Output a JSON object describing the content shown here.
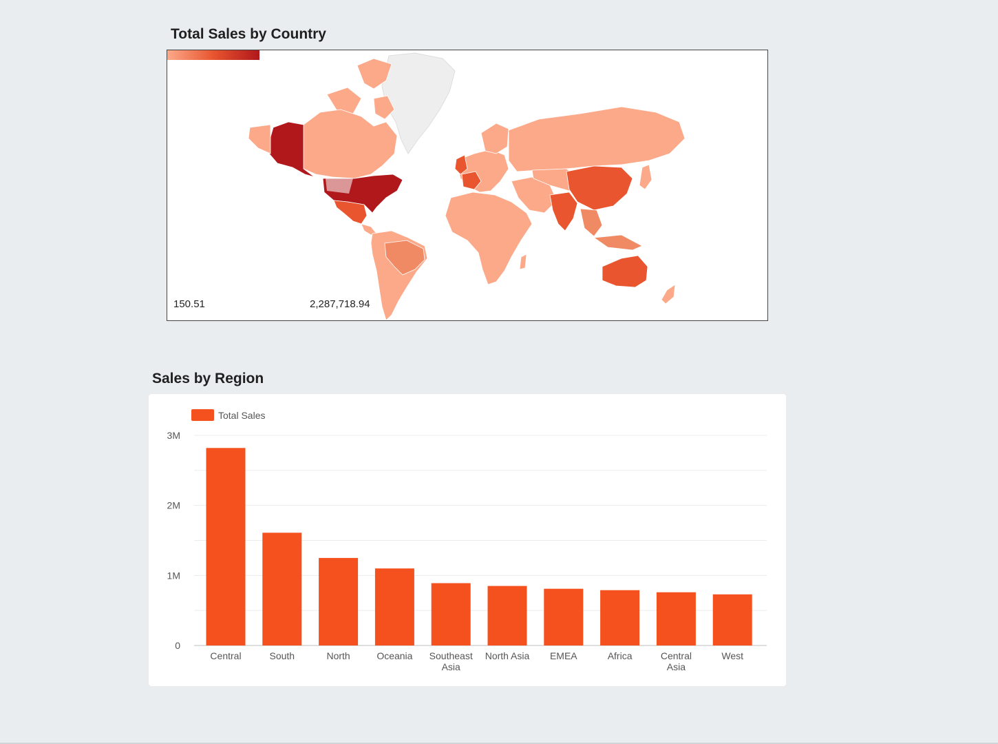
{
  "chart_data": [
    {
      "type": "map",
      "title": "Total Sales by Country",
      "colorscale": {
        "min": "150.51",
        "max": "2,287,718.94",
        "min_color": "#fca98a",
        "mid_color": "#e8552f",
        "max_color": "#b0181c"
      },
      "highlighted": [
        {
          "region": "United States",
          "level": "max"
        },
        {
          "region": "Alaska",
          "level": "max"
        },
        {
          "region": "Australia",
          "level": "mid"
        },
        {
          "region": "China",
          "level": "mid"
        },
        {
          "region": "India",
          "level": "mid"
        },
        {
          "region": "France",
          "level": "mid"
        },
        {
          "region": "United Kingdom",
          "level": "mid"
        },
        {
          "region": "Brazil",
          "level": "mid-low"
        },
        {
          "region": "Mexico",
          "level": "mid"
        }
      ],
      "colors": {
        "land_low": "#fca98a",
        "land_mid": "#f08a64",
        "land_high": "#e8552f",
        "land_max": "#b0181c",
        "no_data": "#eeeeee",
        "ocean": "#ffffff"
      }
    },
    {
      "type": "bar",
      "title": "Sales by Region",
      "legend": {
        "position": "top-left",
        "label": "Total Sales"
      },
      "series": [
        {
          "name": "Total Sales",
          "color": "#f4511e",
          "values": [
            2820000,
            1610000,
            1250000,
            1100000,
            890000,
            850000,
            810000,
            790000,
            760000,
            730000
          ]
        }
      ],
      "categories": [
        [
          "Central"
        ],
        [
          "South"
        ],
        [
          "North"
        ],
        [
          "Oceania"
        ],
        [
          "Southeast",
          "Asia"
        ],
        [
          "North Asia"
        ],
        [
          "EMEA"
        ],
        [
          "Africa"
        ],
        [
          "Central",
          "Asia"
        ],
        [
          "West"
        ]
      ],
      "yticks": [
        {
          "value": 0,
          "label": "0"
        },
        {
          "value": 1000000,
          "label": "1M"
        },
        {
          "value": 2000000,
          "label": "2M"
        },
        {
          "value": 3000000,
          "label": "3M"
        }
      ],
      "ylim": [
        0,
        3000000
      ],
      "grid": true
    }
  ]
}
